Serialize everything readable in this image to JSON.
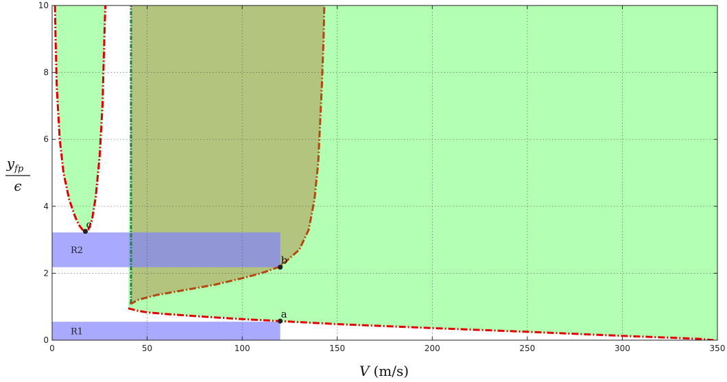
{
  "chart_data": {
    "type": "area",
    "xlabel_var": "V",
    "xlabel_unit": "(m/s)",
    "ylabel_num": "y",
    "ylabel_sub": "fp",
    "ylabel_den": "ϵ",
    "xlim": [
      0,
      350
    ],
    "ylim": [
      0,
      10
    ],
    "xticks": [
      0,
      50,
      100,
      150,
      200,
      250,
      300,
      350
    ],
    "yticks": [
      0,
      2,
      4,
      6,
      8,
      10
    ],
    "grid": true,
    "colors": {
      "stable_region": "#b3ffb3",
      "overlap_region": "#b3c47f",
      "rect_region": "#8080ff",
      "boundary_red": "#e00000",
      "boundary_green": "#2a7a4a",
      "boundary_brown": "#b04a10",
      "point": "#222222"
    },
    "series": [
      {
        "id": "lower-boundary",
        "x": [
          40,
          45,
          50,
          60,
          80,
          100,
          120,
          150,
          200,
          250,
          300,
          340,
          348
        ],
        "y": [
          0.95,
          0.88,
          0.83,
          0.78,
          0.7,
          0.63,
          0.57,
          0.48,
          0.36,
          0.25,
          0.13,
          0.04,
          0.0
        ]
      },
      {
        "id": "left-u-curve",
        "x": [
          1.5,
          1.8,
          2.5,
          4,
          6,
          9,
          12,
          14,
          16,
          17.5,
          19,
          21,
          23,
          25,
          26.5,
          27.2,
          27.7,
          28.0
        ],
        "y": [
          10,
          9,
          7.5,
          6,
          5,
          4.2,
          3.7,
          3.45,
          3.3,
          3.25,
          3.3,
          3.6,
          4.3,
          5.5,
          7,
          8.5,
          9.5,
          10
        ]
      },
      {
        "id": "right-hump",
        "x": [
          42,
          45,
          55,
          70,
          85,
          100,
          110,
          120,
          130,
          135,
          138,
          140,
          141,
          142,
          142.8,
          143.2
        ],
        "y": [
          1.1,
          1.2,
          1.35,
          1.5,
          1.65,
          1.85,
          2.0,
          2.2,
          2.7,
          3.3,
          4.2,
          5.3,
          6.5,
          7.7,
          9,
          10
        ]
      },
      {
        "id": "vertical-boundary",
        "x": [
          41.5,
          41.5
        ],
        "y": [
          1.1,
          10
        ]
      }
    ],
    "regions": [
      {
        "label": "R1",
        "x": [
          0,
          120
        ],
        "y": [
          0,
          0.55
        ]
      },
      {
        "label": "R2",
        "x": [
          0,
          120
        ],
        "y": [
          2.18,
          3.22
        ]
      }
    ],
    "points": [
      {
        "label": "a",
        "x": 120,
        "y": 0.57
      },
      {
        "label": "b",
        "x": 120,
        "y": 2.18
      },
      {
        "label": "c",
        "x": 17.5,
        "y": 3.25
      }
    ]
  }
}
